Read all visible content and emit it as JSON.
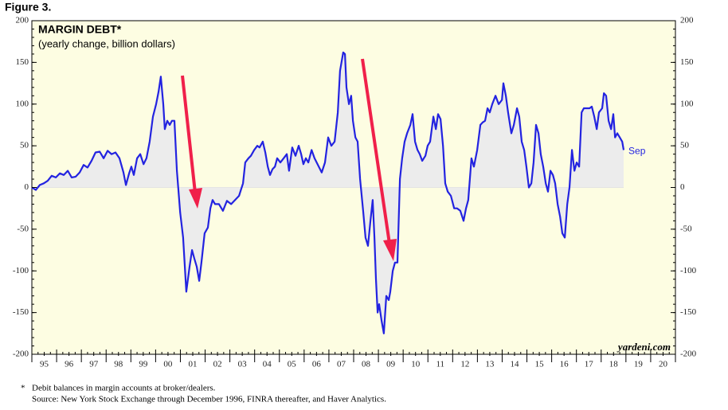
{
  "figure_label": "Figure 3.",
  "chart_data": {
    "type": "line",
    "title": "MARGIN DEBT*",
    "subtitle": "(yearly change, billion dollars)",
    "x": [
      1995.0,
      1995.16,
      1995.32,
      1995.48,
      1995.64,
      1995.8,
      1995.97,
      1996.13,
      1996.29,
      1996.45,
      1996.61,
      1996.77,
      1996.93,
      1997.09,
      1997.25,
      1997.41,
      1997.57,
      1997.74,
      1997.9,
      1998.06,
      1998.22,
      1998.38,
      1998.54,
      1998.7,
      1998.8,
      1998.93,
      1999.02,
      1999.12,
      1999.25,
      1999.38,
      1999.51,
      1999.63,
      1999.76,
      1999.89,
      2000.02,
      2000.12,
      2000.21,
      2000.31,
      2000.37,
      2000.47,
      2000.57,
      2000.66,
      2000.76,
      2000.86,
      2000.99,
      2001.11,
      2001.24,
      2001.37,
      2001.47,
      2001.56,
      2001.66,
      2001.76,
      2001.85,
      2001.98,
      2002.11,
      2002.21,
      2002.3,
      2002.4,
      2002.56,
      2002.72,
      2002.88,
      2003.05,
      2003.21,
      2003.37,
      2003.53,
      2003.62,
      2003.75,
      2003.85,
      2003.98,
      2004.11,
      2004.2,
      2004.33,
      2004.43,
      2004.53,
      2004.62,
      2004.72,
      2004.82,
      2004.91,
      2005.04,
      2005.17,
      2005.3,
      2005.39,
      2005.52,
      2005.65,
      2005.78,
      2005.88,
      2005.97,
      2006.07,
      2006.17,
      2006.3,
      2006.42,
      2006.59,
      2006.71,
      2006.84,
      2006.97,
      2007.1,
      2007.23,
      2007.36,
      2007.45,
      2007.58,
      2007.65,
      2007.71,
      2007.81,
      2007.9,
      2007.97,
      2008.07,
      2008.16,
      2008.26,
      2008.39,
      2008.48,
      2008.58,
      2008.68,
      2008.77,
      2008.84,
      2008.9,
      2008.97,
      2009.03,
      2009.13,
      2009.22,
      2009.32,
      2009.42,
      2009.48,
      2009.58,
      2009.67,
      2009.77,
      2009.87,
      2009.96,
      2010.06,
      2010.16,
      2010.29,
      2010.38,
      2010.48,
      2010.58,
      2010.67,
      2010.77,
      2010.9,
      2010.99,
      2011.09,
      2011.22,
      2011.32,
      2011.41,
      2011.51,
      2011.61,
      2011.7,
      2011.8,
      2011.93,
      2012.06,
      2012.18,
      2012.31,
      2012.44,
      2012.54,
      2012.63,
      2012.76,
      2012.86,
      2012.99,
      2013.12,
      2013.21,
      2013.31,
      2013.41,
      2013.5,
      2013.6,
      2013.73,
      2013.86,
      2013.99,
      2014.05,
      2014.15,
      2014.24,
      2014.37,
      2014.47,
      2014.6,
      2014.69,
      2014.79,
      2014.89,
      2014.98,
      2015.08,
      2015.18,
      2015.27,
      2015.37,
      2015.47,
      2015.56,
      2015.66,
      2015.76,
      2015.85,
      2015.95,
      2016.05,
      2016.14,
      2016.24,
      2016.34,
      2016.43,
      2016.53,
      2016.63,
      2016.72,
      2016.82,
      2016.92,
      2017.01,
      2017.11,
      2017.21,
      2017.3,
      2017.43,
      2017.53,
      2017.62,
      2017.72,
      2017.82,
      2017.91,
      2018.04,
      2018.11,
      2018.2,
      2018.3,
      2018.4,
      2018.49,
      2018.56,
      2018.65,
      2018.75,
      2018.85,
      2018.91
    ],
    "series": [
      {
        "color": "#2323e0",
        "fill": "#ececec",
        "values": [
          0,
          -3,
          3,
          5,
          8,
          14,
          12,
          17,
          15,
          20,
          12,
          13,
          18,
          27,
          24,
          32,
          42,
          43,
          35,
          44,
          40,
          42,
          35,
          18,
          3,
          17,
          25,
          15,
          35,
          40,
          28,
          35,
          55,
          85,
          100,
          115,
          133,
          100,
          70,
          80,
          75,
          80,
          80,
          20,
          -30,
          -60,
          -125,
          -95,
          -75,
          -85,
          -95,
          -112,
          -90,
          -55,
          -48,
          -25,
          -15,
          -20,
          -20,
          -28,
          -16,
          -20,
          -15,
          -10,
          5,
          30,
          35,
          38,
          45,
          50,
          48,
          55,
          42,
          25,
          15,
          22,
          25,
          35,
          30,
          35,
          40,
          20,
          48,
          38,
          50,
          40,
          28,
          35,
          30,
          45,
          35,
          25,
          18,
          30,
          60,
          50,
          55,
          90,
          140,
          162,
          160,
          120,
          100,
          110,
          80,
          60,
          55,
          10,
          -30,
          -60,
          -70,
          -40,
          -15,
          -60,
          -110,
          -150,
          -140,
          -160,
          -175,
          -130,
          -135,
          -125,
          -100,
          -90,
          -90,
          10,
          35,
          55,
          65,
          75,
          88,
          55,
          45,
          40,
          32,
          38,
          50,
          55,
          85,
          70,
          88,
          82,
          50,
          5,
          -5,
          -10,
          -25,
          -25,
          -28,
          -40,
          -25,
          -15,
          35,
          25,
          45,
          75,
          78,
          80,
          95,
          90,
          100,
          110,
          100,
          105,
          125,
          110,
          90,
          65,
          75,
          95,
          85,
          55,
          45,
          25,
          0,
          5,
          30,
          75,
          65,
          40,
          25,
          5,
          -5,
          20,
          15,
          5,
          -20,
          -35,
          -55,
          -60,
          -20,
          0,
          45,
          20,
          30,
          25,
          90,
          95,
          95,
          95,
          97,
          85,
          70,
          90,
          95,
          113,
          110,
          80,
          70,
          88,
          60,
          65,
          60,
          55,
          45
        ]
      }
    ],
    "annotations": [
      "Sep"
    ],
    "xlim": [
      1995,
      2021
    ],
    "xticks": [
      {
        "value": 1995.5,
        "label": "95"
      },
      {
        "value": 1996.5,
        "label": "96"
      },
      {
        "value": 1997.5,
        "label": "97"
      },
      {
        "value": 1998.5,
        "label": "98"
      },
      {
        "value": 1999.5,
        "label": "99"
      },
      {
        "value": 2000.5,
        "label": "00"
      },
      {
        "value": 2001.5,
        "label": "01"
      },
      {
        "value": 2002.5,
        "label": "02"
      },
      {
        "value": 2003.5,
        "label": "03"
      },
      {
        "value": 2004.5,
        "label": "04"
      },
      {
        "value": 2005.5,
        "label": "05"
      },
      {
        "value": 2006.5,
        "label": "06"
      },
      {
        "value": 2007.5,
        "label": "07"
      },
      {
        "value": 2008.5,
        "label": "08"
      },
      {
        "value": 2009.5,
        "label": "09"
      },
      {
        "value": 2010.5,
        "label": "10"
      },
      {
        "value": 2011.5,
        "label": "11"
      },
      {
        "value": 2012.5,
        "label": "12"
      },
      {
        "value": 2013.5,
        "label": "13"
      },
      {
        "value": 2014.5,
        "label": "14"
      },
      {
        "value": 2015.5,
        "label": "15"
      },
      {
        "value": 2016.5,
        "label": "16"
      },
      {
        "value": 2017.5,
        "label": "17"
      },
      {
        "value": 2018.5,
        "label": "18"
      },
      {
        "value": 2019.5,
        "label": "19"
      },
      {
        "value": 2020.5,
        "label": "20"
      }
    ],
    "ylim": [
      -200,
      200
    ],
    "yticks": [
      -200,
      -150,
      -100,
      -50,
      0,
      50,
      100,
      150,
      200
    ],
    "y2lim": [
      -200,
      200
    ],
    "y2ticks": [
      -200,
      -150,
      -100,
      -50,
      0,
      50,
      100,
      150,
      200
    ],
    "background": "#fdfde2",
    "watermark": "yardeni.com"
  },
  "footnote": {
    "marker": "*",
    "note": "Debit balances in margin accounts at broker/dealers.",
    "source": "Source: New York Stock Exchange through December 1996, FINRA thereafter, and Haver Analytics."
  }
}
